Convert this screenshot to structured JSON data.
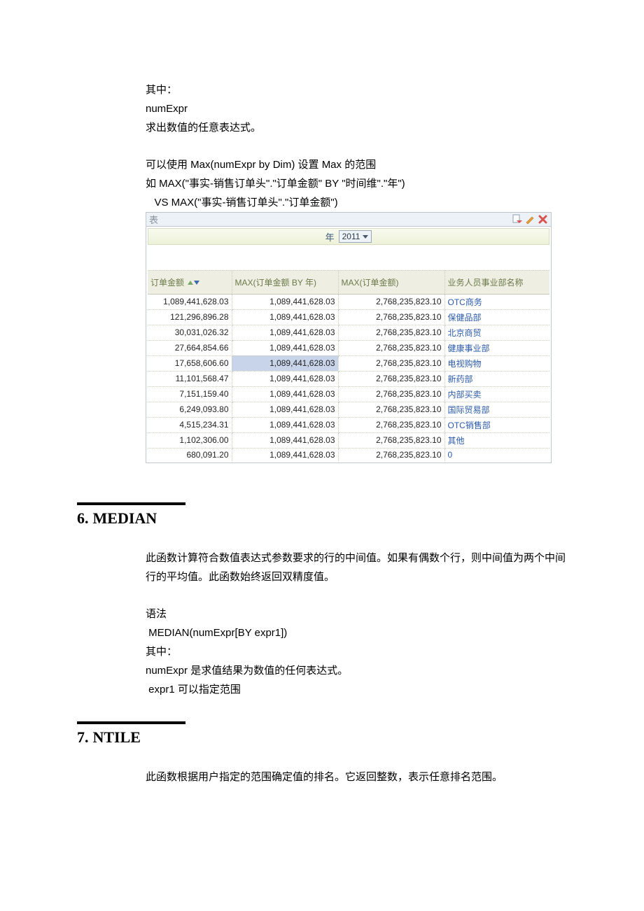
{
  "colors": {
    "text": "#000000",
    "link": "#2a5aaa",
    "header_bg": "#efeee2",
    "header_text": "#6a7a4a",
    "filter_bg_top": "#f8faef",
    "filter_bg_bottom": "#eef2d8",
    "highlight_bg": "#c8d4ea",
    "border": "#c0c8d0",
    "dotted": "#c8ccb8"
  },
  "intro": {
    "line1": "其中：",
    "line2": "numExpr",
    "line3": "求出数值的任意表达式。",
    "line4": "可以使用 Max(numExpr by Dim)  设置  Max 的范围",
    "line5": "如 MAX(\"事实-销售订单头\".\"订单金额\" BY \"时间维\".\"年\")",
    "line6": "   VS MAX(\"事实-销售订单头\".\"订单金额\")"
  },
  "table": {
    "title": "表",
    "filter_label": "年",
    "filter_value": "2011",
    "columns": {
      "c0": "订单金额",
      "c1": "MAX(订单金额 BY 年)",
      "c2": "MAX(订单金额)",
      "c3": "业务人员事业部名称"
    },
    "col_widths": [
      "120px",
      "152px",
      "152px",
      "150px"
    ],
    "highlight_row_index": 4,
    "rows": [
      {
        "a": "1,089,441,628.03",
        "b": "1,089,441,628.03",
        "c": "2,768,235,823.10",
        "d": "OTC商务"
      },
      {
        "a": "121,296,896.28",
        "b": "1,089,441,628.03",
        "c": "2,768,235,823.10",
        "d": "保健品部"
      },
      {
        "a": "30,031,026.32",
        "b": "1,089,441,628.03",
        "c": "2,768,235,823.10",
        "d": "北京商贸"
      },
      {
        "a": "27,664,854.66",
        "b": "1,089,441,628.03",
        "c": "2,768,235,823.10",
        "d": "健康事业部"
      },
      {
        "a": "17,658,606.60",
        "b": "1,089,441,628.03",
        "c": "2,768,235,823.10",
        "d": "电视购物"
      },
      {
        "a": "11,101,568.47",
        "b": "1,089,441,628.03",
        "c": "2,768,235,823.10",
        "d": "新药部"
      },
      {
        "a": "7,151,159.40",
        "b": "1,089,441,628.03",
        "c": "2,768,235,823.10",
        "d": "内部买卖"
      },
      {
        "a": "6,249,093.80",
        "b": "1,089,441,628.03",
        "c": "2,768,235,823.10",
        "d": "国际贸易部"
      },
      {
        "a": "4,515,234.31",
        "b": "1,089,441,628.03",
        "c": "2,768,235,823.10",
        "d": "OTC销售部"
      },
      {
        "a": "1,102,306.00",
        "b": "1,089,441,628.03",
        "c": "2,768,235,823.10",
        "d": "其他"
      },
      {
        "a": "680,091.20",
        "b": "1,089,441,628.03",
        "c": "2,768,235,823.10",
        "d": "0"
      }
    ]
  },
  "section6": {
    "num": "6.",
    "title": "MEDIAN",
    "p1": "此函数计算符合数值表达式参数要求的行的中间值。如果有偶数个行，则中间值为两个中间行的平均值。此函数始终返回双精度值。",
    "p2": "语法",
    "p3": " MEDIAN(numExpr[BY expr1])",
    "p4": "其中：",
    "p5": "numExpr  是求值结果为数值的任何表达式。",
    "p6": " expr1  可以指定范围"
  },
  "section7": {
    "num": "7.",
    "title": "NTILE",
    "p1": "此函数根据用户指定的范围确定值的排名。它返回整数，表示任意排名范围。"
  }
}
